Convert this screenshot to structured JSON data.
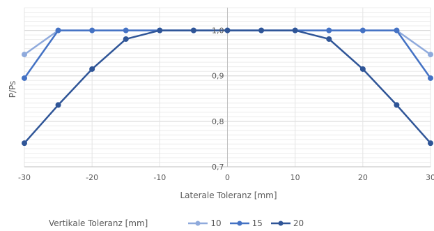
{
  "chart_data": {
    "type": "line",
    "xlabel": "Laterale Toleranz [mm]",
    "ylabel": "P/Ps",
    "x": [
      -30,
      -25,
      -20,
      -15,
      -10,
      -5,
      0,
      5,
      10,
      15,
      20,
      25,
      30
    ],
    "x_ticks": [
      -30,
      -20,
      -10,
      0,
      10,
      20,
      30
    ],
    "x_tick_labels": [
      "-30",
      "-20",
      "-10",
      "0",
      "10",
      "20",
      "30"
    ],
    "xlim": [
      -30,
      30
    ],
    "y_ticks": [
      0.7,
      0.8,
      0.9,
      1.0
    ],
    "y_tick_labels": [
      "0,7",
      "0,8",
      "0,9",
      "1,0"
    ],
    "ylim": [
      0.7,
      1.05
    ],
    "y_axis_position": "center at x=0",
    "grid": true,
    "legend_title": "Vertikale Toleranz [mm]",
    "legend_position": "bottom",
    "series": [
      {
        "name": "10",
        "color": "#8faadc",
        "values": [
          0.947,
          1.0,
          1.0,
          1.0,
          1.0,
          1.0,
          1.0,
          1.0,
          1.0,
          1.0,
          1.0,
          1.0,
          0.947
        ]
      },
      {
        "name": "15",
        "color": "#4472c4",
        "values": [
          0.895,
          1.0,
          1.0,
          1.0,
          1.0,
          1.0,
          1.0,
          1.0,
          1.0,
          1.0,
          1.0,
          1.0,
          0.895
        ]
      },
      {
        "name": "20",
        "color": "#2f5597",
        "values": [
          0.752,
          0.836,
          0.915,
          0.981,
          1.0,
          1.0,
          1.0,
          1.0,
          1.0,
          0.981,
          0.915,
          0.836,
          0.752
        ]
      }
    ]
  }
}
